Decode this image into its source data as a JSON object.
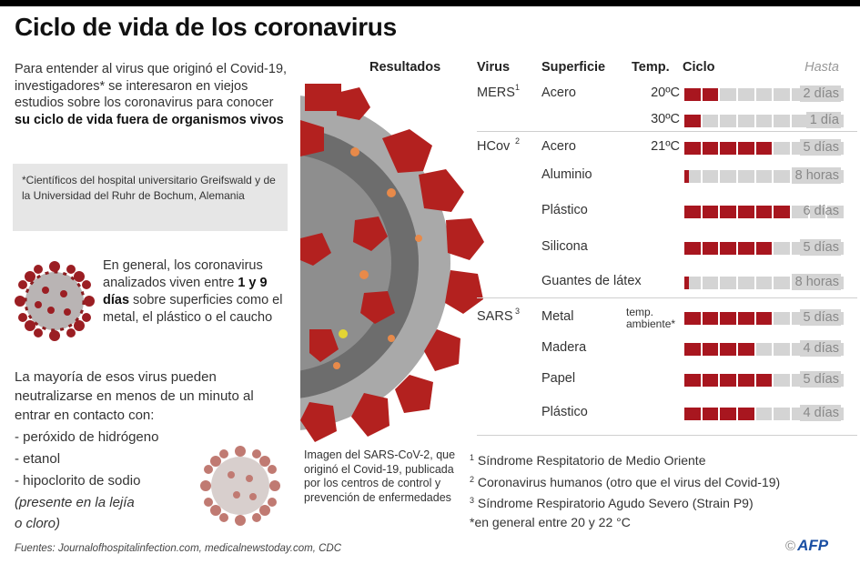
{
  "title": "Ciclo de vida de los coronavirus",
  "intro": {
    "text_before": "Para entender al virus que originó el Covid-19, investigadores* se interesaron en viejos estudios sobre los coronavirus para conocer ",
    "text_bold": "su ciclo de vida fuera de organismos vivos"
  },
  "note_box": "*Científicos del hospital universitario Greifswald y de la Universidad del Ruhr de Bochum, Alemania",
  "general": {
    "text_before": "En general, los coronavirus analizados viven entre ",
    "text_bold": "1 y 9 días",
    "text_after": " sobre superficies como el metal, el plástico o el caucho"
  },
  "neutralize": {
    "lead": "La mayoría de esos virus pueden neutralizarse en menos de un minuto al entrar en contacto con:",
    "items": [
      "- peróxido de hidrógeno",
      "- etanol",
      "- hipoclorito de sodio"
    ],
    "note_line1": " (presente en la lejía",
    "note_line2": "o cloro)"
  },
  "results_label": "Resultados",
  "image_caption": "Imagen del SARS-CoV-2, que originó el Covid-19, publicada por los centros de control y prevención de enfermedades",
  "sources": "Fuentes: Journalofhospitalinfection.com, medicalnewstoday.com, CDC",
  "table": {
    "headers": {
      "virus": "Virus",
      "surface": "Superficie",
      "temp": "Temp.",
      "cycle": "Ciclo",
      "until": "Hasta"
    },
    "colors": {
      "filled": "#a8161f",
      "empty": "#d4d4d4"
    }
  },
  "chart_data": {
    "type": "bar",
    "title": "Ciclo de vida de los coronavirus",
    "xlabel": "Ciclo",
    "ylabel": "Superficie",
    "unit_cells": 9,
    "categories": [
      "MERS Acero 20°C",
      "MERS Acero 30°C",
      "HCov Acero 21°C",
      "HCov Aluminio",
      "HCov Plástico",
      "HCov Silicona",
      "HCov Guantes de látex",
      "SARS Metal",
      "SARS Madera",
      "SARS Papel",
      "SARS Plástico"
    ],
    "rows": [
      {
        "virus": "MERS",
        "sup": "1",
        "surface": "Acero",
        "temp": "20ºC",
        "days": 2,
        "label": "2 días"
      },
      {
        "virus": "",
        "sup": "",
        "surface": "",
        "temp": "30ºC",
        "days": 1,
        "label": "1 día"
      },
      {
        "virus": "HCov",
        "sup": "2",
        "surface": "Acero",
        "temp": "21ºC",
        "days": 5,
        "label": "5 días"
      },
      {
        "virus": "",
        "sup": "",
        "surface": "Aluminio",
        "temp": "",
        "days": 0.33,
        "label": "8 horas"
      },
      {
        "virus": "",
        "sup": "",
        "surface": "Plástico",
        "temp": "",
        "days": 6,
        "label": "6 días"
      },
      {
        "virus": "",
        "sup": "",
        "surface": "Silicona",
        "temp": "",
        "days": 5,
        "label": "5 días"
      },
      {
        "virus": "",
        "sup": "",
        "surface": "Guantes de látex",
        "temp": "",
        "days": 0.33,
        "label": "8 horas"
      },
      {
        "virus": "SARS",
        "sup": "3",
        "surface": "Metal",
        "temp": "temp. ambiente*",
        "days": 5,
        "label": "5 días"
      },
      {
        "virus": "",
        "sup": "",
        "surface": "Madera",
        "temp": "",
        "days": 4,
        "label": "4 días"
      },
      {
        "virus": "",
        "sup": "",
        "surface": "Papel",
        "temp": "",
        "days": 5,
        "label": "5 días"
      },
      {
        "virus": "",
        "sup": "",
        "surface": "Plástico",
        "temp": "",
        "days": 4,
        "label": "4 días"
      }
    ],
    "values": [
      2,
      1,
      5,
      0.33,
      6,
      5,
      0.33,
      5,
      4,
      5,
      4
    ]
  },
  "footnotes": [
    {
      "mark": "1",
      "text": " Síndrome Respitatorio de Medio Oriente"
    },
    {
      "mark": "2",
      "text": " Coronavirus humanos (otro que el virus del Covid-19)"
    },
    {
      "mark": "3",
      "text": " Síndrome Respiratorio Agudo Severo (Strain P9)"
    },
    {
      "mark": "",
      "text": "*en general entre 20 y 22 °C"
    }
  ],
  "credit": {
    "copyright": "©",
    "brand": "AFP"
  }
}
